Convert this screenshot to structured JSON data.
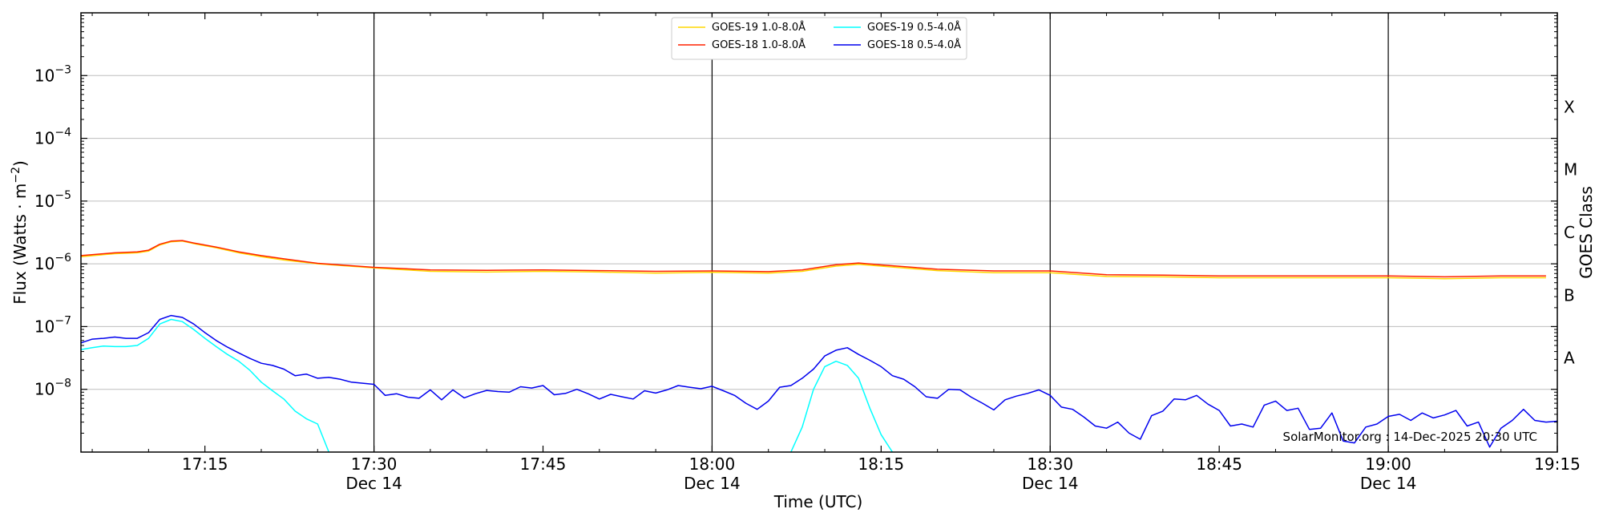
{
  "chart_data": {
    "type": "line",
    "title": "",
    "xlabel": "Time (UTC)",
    "ylabel": "Flux (Watts · m",
    "ylabel_sup": "−2",
    "ylabel_end": ")",
    "right_label": "GOES Class",
    "x_range": [
      "17:04",
      "19:15"
    ],
    "y_scale": "log",
    "ylim": [
      1e-09,
      0.01
    ],
    "grid": "horizontal",
    "legend_position": "top-center",
    "x_ticks": [
      {
        "t": "17:15",
        "label": "17:15",
        "date": ""
      },
      {
        "t": "17:30",
        "label": "17:30",
        "date": "Dec 14"
      },
      {
        "t": "17:45",
        "label": "17:45",
        "date": ""
      },
      {
        "t": "18:00",
        "label": "18:00",
        "date": "Dec 14"
      },
      {
        "t": "18:15",
        "label": "18:15",
        "date": ""
      },
      {
        "t": "18:30",
        "label": "18:30",
        "date": "Dec 14"
      },
      {
        "t": "18:45",
        "label": "18:45",
        "date": ""
      },
      {
        "t": "19:00",
        "label": "19:00",
        "date": "Dec 14"
      },
      {
        "t": "19:15",
        "label": "19:15",
        "date": ""
      }
    ],
    "vlines": [
      "17:30",
      "18:00",
      "18:30",
      "19:00"
    ],
    "y_ticks": [
      {
        "v": 1e-08,
        "base": "10",
        "exp": "−8"
      },
      {
        "v": 1e-07,
        "base": "10",
        "exp": "−7"
      },
      {
        "v": 1e-06,
        "base": "10",
        "exp": "−6"
      },
      {
        "v": 1e-05,
        "base": "10",
        "exp": "−5"
      },
      {
        "v": 0.0001,
        "base": "10",
        "exp": "−4"
      },
      {
        "v": 0.001,
        "base": "10",
        "exp": "−3"
      }
    ],
    "goes_classes": [
      {
        "label": "A",
        "v": 3.16e-08
      },
      {
        "label": "B",
        "v": 3.16e-07
      },
      {
        "label": "C",
        "v": 3.16e-06
      },
      {
        "label": "M",
        "v": 3.16e-05
      },
      {
        "label": "X",
        "v": 0.000316
      }
    ],
    "series": [
      {
        "name": "GOES-19 1.0-8.0Å",
        "color": "#ffd700",
        "points": [
          [
            "17:04",
            1.3e-06
          ],
          [
            "17:07",
            1.45e-06
          ],
          [
            "17:09",
            1.5e-06
          ],
          [
            "17:10",
            1.6e-06
          ],
          [
            "17:11",
            2e-06
          ],
          [
            "17:12",
            2.25e-06
          ],
          [
            "17:13",
            2.3e-06
          ],
          [
            "17:14",
            2.1e-06
          ],
          [
            "17:16",
            1.8e-06
          ],
          [
            "17:18",
            1.5e-06
          ],
          [
            "17:20",
            1.3e-06
          ],
          [
            "17:22",
            1.15e-06
          ],
          [
            "17:25",
            1e-06
          ],
          [
            "17:30",
            8.6e-07
          ],
          [
            "17:35",
            7.6e-07
          ],
          [
            "17:40",
            7.4e-07
          ],
          [
            "17:45",
            7.6e-07
          ],
          [
            "17:50",
            7.4e-07
          ],
          [
            "17:55",
            7.1e-07
          ],
          [
            "18:00",
            7.3e-07
          ],
          [
            "18:05",
            7.1e-07
          ],
          [
            "18:08",
            7.6e-07
          ],
          [
            "18:11",
            9.2e-07
          ],
          [
            "18:13",
            9.8e-07
          ],
          [
            "18:15",
            9.2e-07
          ],
          [
            "18:20",
            7.8e-07
          ],
          [
            "18:25",
            7.2e-07
          ],
          [
            "18:30",
            7.2e-07
          ],
          [
            "18:35",
            6.3e-07
          ],
          [
            "18:40",
            6.2e-07
          ],
          [
            "18:45",
            6e-07
          ],
          [
            "18:50",
            6e-07
          ],
          [
            "18:55",
            6e-07
          ],
          [
            "19:00",
            6e-07
          ],
          [
            "19:05",
            5.8e-07
          ],
          [
            "19:10",
            6e-07
          ],
          [
            "19:14",
            6e-07
          ]
        ]
      },
      {
        "name": "GOES-18 1.0-8.0Å",
        "color": "#ff2200",
        "points": [
          [
            "17:04",
            1.35e-06
          ],
          [
            "17:07",
            1.5e-06
          ],
          [
            "17:09",
            1.55e-06
          ],
          [
            "17:10",
            1.65e-06
          ],
          [
            "17:11",
            2.05e-06
          ],
          [
            "17:12",
            2.3e-06
          ],
          [
            "17:13",
            2.35e-06
          ],
          [
            "17:14",
            2.15e-06
          ],
          [
            "17:16",
            1.85e-06
          ],
          [
            "17:18",
            1.55e-06
          ],
          [
            "17:20",
            1.35e-06
          ],
          [
            "17:22",
            1.2e-06
          ],
          [
            "17:25",
            1.02e-06
          ],
          [
            "17:30",
            8.8e-07
          ],
          [
            "17:35",
            8e-07
          ],
          [
            "17:40",
            7.9e-07
          ],
          [
            "17:45",
            8e-07
          ],
          [
            "17:50",
            7.8e-07
          ],
          [
            "17:55",
            7.6e-07
          ],
          [
            "18:00",
            7.7e-07
          ],
          [
            "18:05",
            7.5e-07
          ],
          [
            "18:08",
            8e-07
          ],
          [
            "18:11",
            9.7e-07
          ],
          [
            "18:13",
            1.03e-06
          ],
          [
            "18:15",
            9.6e-07
          ],
          [
            "18:20",
            8.2e-07
          ],
          [
            "18:25",
            7.7e-07
          ],
          [
            "18:30",
            7.7e-07
          ],
          [
            "18:35",
            6.7e-07
          ],
          [
            "18:40",
            6.6e-07
          ],
          [
            "18:45",
            6.4e-07
          ],
          [
            "18:50",
            6.4e-07
          ],
          [
            "18:55",
            6.4e-07
          ],
          [
            "19:00",
            6.4e-07
          ],
          [
            "19:05",
            6.2e-07
          ],
          [
            "19:10",
            6.4e-07
          ],
          [
            "19:14",
            6.4e-07
          ]
        ]
      },
      {
        "name": "GOES-19 0.5-4.0Å",
        "color": "#00ffff",
        "points": [
          [
            "17:04",
            4.3e-08
          ],
          [
            "17:05",
            4.6e-08
          ],
          [
            "17:06",
            4.9e-08
          ],
          [
            "17:07",
            4.8e-08
          ],
          [
            "17:08",
            4.8e-08
          ],
          [
            "17:09",
            5e-08
          ],
          [
            "17:10",
            6.5e-08
          ],
          [
            "17:11",
            1.1e-07
          ],
          [
            "17:12",
            1.3e-07
          ],
          [
            "17:13",
            1.2e-07
          ],
          [
            "17:14",
            9e-08
          ],
          [
            "17:15",
            6.5e-08
          ],
          [
            "17:16",
            4.8e-08
          ],
          [
            "17:17",
            3.6e-08
          ],
          [
            "17:18",
            2.8e-08
          ],
          [
            "17:19",
            2e-08
          ],
          [
            "17:20",
            1.3e-08
          ],
          [
            "17:21",
            9.5e-09
          ],
          [
            "17:22",
            7e-09
          ],
          [
            "17:23",
            4.5e-09
          ],
          [
            "17:24",
            3.4e-09
          ],
          [
            "17:25",
            2.8e-09
          ],
          [
            "17:26",
            1e-09
          ],
          null,
          [
            "18:07",
            1e-09
          ],
          [
            "18:08",
            2.5e-09
          ],
          [
            "18:09",
            1e-08
          ],
          [
            "18:10",
            2.3e-08
          ],
          [
            "18:11",
            2.8e-08
          ],
          [
            "18:12",
            2.4e-08
          ],
          [
            "18:13",
            1.5e-08
          ],
          [
            "18:14",
            5e-09
          ],
          [
            "18:15",
            1.9e-09
          ],
          [
            "18:16",
            1e-09
          ]
        ]
      },
      {
        "name": "GOES-18 0.5-4.0Å",
        "color": "#0000ee",
        "points": [
          [
            "17:04",
            5.5e-08
          ],
          [
            "17:05",
            6.3e-08
          ],
          [
            "17:06",
            6.5e-08
          ],
          [
            "17:07",
            6.8e-08
          ],
          [
            "17:08",
            6.5e-08
          ],
          [
            "17:09",
            6.5e-08
          ],
          [
            "17:10",
            8e-08
          ],
          [
            "17:11",
            1.3e-07
          ],
          [
            "17:12",
            1.5e-07
          ],
          [
            "17:13",
            1.4e-07
          ],
          [
            "17:14",
            1.1e-07
          ],
          [
            "17:15",
            8e-08
          ],
          [
            "17:16",
            6e-08
          ],
          [
            "17:17",
            4.7e-08
          ],
          [
            "17:18",
            3.8e-08
          ],
          [
            "17:19",
            3.1e-08
          ],
          [
            "17:20",
            2.6e-08
          ],
          [
            "17:21",
            2.4e-08
          ],
          [
            "17:22",
            2.1e-08
          ],
          [
            "17:23",
            1.65e-08
          ],
          [
            "17:24",
            1.75e-08
          ],
          [
            "17:25",
            1.5e-08
          ],
          [
            "17:26",
            1.55e-08
          ],
          [
            "17:27",
            1.45e-08
          ],
          [
            "17:28",
            1.3e-08
          ],
          [
            "17:29",
            1.25e-08
          ],
          [
            "17:30",
            1.2e-08
          ],
          [
            "17:31",
            8e-09
          ],
          [
            "17:32",
            8.5e-09
          ],
          [
            "17:33",
            7.5e-09
          ],
          [
            "17:34",
            7.2e-09
          ],
          [
            "17:35",
            9.8e-09
          ],
          [
            "17:36",
            6.8e-09
          ],
          [
            "17:37",
            9.8e-09
          ],
          [
            "17:38",
            7.3e-09
          ],
          [
            "17:39",
            8.5e-09
          ],
          [
            "17:40",
            9.6e-09
          ],
          [
            "17:41",
            9.2e-09
          ],
          [
            "17:42",
            9e-09
          ],
          [
            "17:43",
            1.1e-08
          ],
          [
            "17:44",
            1.05e-08
          ],
          [
            "17:45",
            1.15e-08
          ],
          [
            "17:46",
            8.2e-09
          ],
          [
            "17:47",
            8.6e-09
          ],
          [
            "17:48",
            1e-08
          ],
          [
            "17:49",
            8.5e-09
          ],
          [
            "17:50",
            7e-09
          ],
          [
            "17:51",
            8.3e-09
          ],
          [
            "17:52",
            7.6e-09
          ],
          [
            "17:53",
            7e-09
          ],
          [
            "17:54",
            9.5e-09
          ],
          [
            "17:55",
            8.7e-09
          ],
          [
            "17:56",
            9.8e-09
          ],
          [
            "17:57",
            1.15e-08
          ],
          [
            "17:58",
            1.08e-08
          ],
          [
            "17:59",
            1.02e-08
          ],
          [
            "18:00",
            1.12e-08
          ],
          [
            "18:01",
            9.5e-09
          ],
          [
            "18:02",
            8e-09
          ],
          [
            "18:03",
            6e-09
          ],
          [
            "18:04",
            4.8e-09
          ],
          [
            "18:05",
            6.5e-09
          ],
          [
            "18:06",
            1.08e-08
          ],
          [
            "18:07",
            1.15e-08
          ],
          [
            "18:08",
            1.5e-08
          ],
          [
            "18:09",
            2.1e-08
          ],
          [
            "18:10",
            3.4e-08
          ],
          [
            "18:11",
            4.2e-08
          ],
          [
            "18:12",
            4.6e-08
          ],
          [
            "18:13",
            3.6e-08
          ],
          [
            "18:14",
            2.9e-08
          ],
          [
            "18:15",
            2.3e-08
          ],
          [
            "18:16",
            1.65e-08
          ],
          [
            "18:17",
            1.45e-08
          ],
          [
            "18:18",
            1.1e-08
          ],
          [
            "18:19",
            7.6e-09
          ],
          [
            "18:20",
            7.2e-09
          ],
          [
            "18:21",
            1e-08
          ],
          [
            "18:22",
            9.8e-09
          ],
          [
            "18:23",
            7.5e-09
          ],
          [
            "18:24",
            6e-09
          ],
          [
            "18:25",
            4.7e-09
          ],
          [
            "18:26",
            6.8e-09
          ],
          [
            "18:27",
            7.8e-09
          ],
          [
            "18:28",
            8.6e-09
          ],
          [
            "18:29",
            9.8e-09
          ],
          [
            "18:30",
            8e-09
          ],
          [
            "18:31",
            5.2e-09
          ],
          [
            "18:32",
            4.8e-09
          ],
          [
            "18:33",
            3.6e-09
          ],
          [
            "18:34",
            2.6e-09
          ],
          [
            "18:35",
            2.4e-09
          ],
          [
            "18:36",
            3e-09
          ],
          [
            "18:37",
            2e-09
          ],
          [
            "18:38",
            1.6e-09
          ],
          [
            "18:39",
            3.8e-09
          ],
          [
            "18:40",
            4.5e-09
          ],
          [
            "18:41",
            7e-09
          ],
          [
            "18:42",
            6.8e-09
          ],
          [
            "18:43",
            8e-09
          ],
          [
            "18:44",
            5.8e-09
          ],
          [
            "18:45",
            4.6e-09
          ],
          [
            "18:46",
            2.6e-09
          ],
          [
            "18:47",
            2.8e-09
          ],
          [
            "18:48",
            2.5e-09
          ],
          [
            "18:49",
            5.6e-09
          ],
          [
            "18:50",
            6.5e-09
          ],
          [
            "18:51",
            4.6e-09
          ],
          [
            "18:52",
            5e-09
          ],
          [
            "18:53",
            2.3e-09
          ],
          [
            "18:54",
            2.4e-09
          ],
          [
            "18:55",
            4.2e-09
          ],
          [
            "18:56",
            1.5e-09
          ],
          [
            "18:57",
            1.4e-09
          ],
          [
            "18:58",
            2.5e-09
          ],
          [
            "18:59",
            2.8e-09
          ],
          [
            "19:00",
            3.7e-09
          ],
          [
            "19:01",
            4e-09
          ],
          [
            "19:02",
            3.2e-09
          ],
          [
            "19:03",
            4.2e-09
          ],
          [
            "19:04",
            3.5e-09
          ],
          [
            "19:05",
            3.9e-09
          ],
          [
            "19:06",
            4.6e-09
          ],
          [
            "19:07",
            2.6e-09
          ],
          [
            "19:08",
            3e-09
          ],
          [
            "19:09",
            1.2e-09
          ],
          [
            "19:10",
            2.4e-09
          ],
          [
            "19:11",
            3.2e-09
          ],
          [
            "19:12",
            4.8e-09
          ],
          [
            "19:13",
            3.2e-09
          ],
          [
            "19:14",
            3e-09
          ],
          [
            "19:15",
            3.1e-09
          ]
        ]
      }
    ],
    "footer": "SolarMonitor.org : 14-Dec-2025 20:30 UTC"
  }
}
